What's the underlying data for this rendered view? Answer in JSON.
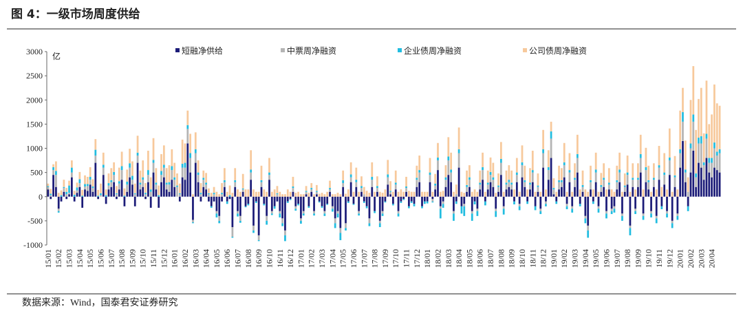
{
  "chart_data": {
    "type": "stacked_bar",
    "title": "图 4：一级市场周度供给",
    "y_unit": "亿",
    "ylim": [
      -1000,
      3000
    ],
    "yticks": [
      -1000,
      -500,
      0,
      500,
      1000,
      1500,
      2000,
      2500,
      3000
    ],
    "grid": false,
    "categories": [
      "15/01",
      null,
      null,
      null,
      "15/02",
      null,
      null,
      null,
      "15/03",
      null,
      null,
      null,
      "15/04",
      null,
      null,
      null,
      "15/05",
      null,
      null,
      null,
      "15/06",
      null,
      null,
      null,
      "15/07",
      null,
      null,
      null,
      "15/08",
      null,
      null,
      null,
      "15/09",
      null,
      null,
      null,
      "15/10",
      null,
      null,
      null,
      "15/11",
      null,
      null,
      null,
      "15/12",
      null,
      null,
      null,
      "16/01",
      null,
      null,
      null,
      "16/02",
      null,
      null,
      null,
      "16/03",
      null,
      null,
      null,
      "16/04",
      null,
      null,
      null,
      "16/05",
      null,
      null,
      null,
      "16/06",
      null,
      null,
      null,
      "16/07",
      null,
      null,
      null,
      "16/08",
      null,
      null,
      null,
      "16/09",
      null,
      null,
      null,
      "16/10",
      null,
      null,
      null,
      "16/11",
      null,
      null,
      null,
      "16/12",
      null,
      null,
      null,
      "17/01",
      null,
      null,
      null,
      "17/02",
      null,
      null,
      null,
      "17/03",
      null,
      null,
      null,
      "17/04",
      null,
      null,
      null,
      "17/05",
      null,
      null,
      null,
      "17/06",
      null,
      null,
      null,
      "17/07",
      null,
      null,
      null,
      "17/08",
      null,
      null,
      null,
      "17/09",
      null,
      null,
      null,
      "17/10",
      null,
      null,
      null,
      "17/11",
      null,
      null,
      null,
      "17/12",
      null,
      null,
      null,
      "18/01",
      null,
      null,
      null,
      "18/02",
      null,
      null,
      null,
      "18/03",
      null,
      null,
      null,
      "18/04",
      null,
      null,
      null,
      "18/05",
      null,
      null,
      null,
      "18/06",
      null,
      null,
      null,
      "18/07",
      null,
      null,
      null,
      "18/08",
      null,
      null,
      null,
      "18/09",
      null,
      null,
      null,
      "18/10",
      null,
      null,
      null,
      "18/11",
      null,
      null,
      null,
      "18/12",
      null,
      null,
      null,
      "19/01",
      null,
      null,
      null,
      "19/02",
      null,
      null,
      null,
      "19/03",
      null,
      null,
      null,
      "19/04",
      null,
      null,
      null,
      "19/05",
      null,
      null,
      null,
      "19/06",
      null,
      null,
      null,
      "19/07",
      null,
      null,
      null,
      "19/08",
      null,
      null,
      null,
      "19/09",
      null,
      null,
      null,
      "19/10",
      null,
      null,
      null,
      "19/11",
      null,
      null,
      null,
      "19/12",
      null,
      null,
      null,
      "20/01",
      null,
      null,
      null,
      "20/02",
      null,
      null,
      null,
      "20/03",
      null,
      null,
      null,
      "20/04",
      null,
      null,
      null
    ],
    "series": [
      {
        "name": "短融净供给",
        "color": "#1c1c78",
        "values": [
          150,
          -50,
          450,
          200,
          -250,
          -100,
          100,
          -50,
          50,
          400,
          -100,
          80,
          200,
          -230,
          150,
          120,
          250,
          100,
          700,
          -50,
          0,
          450,
          -150,
          150,
          200,
          300,
          -50,
          150,
          350,
          -200,
          100,
          400,
          250,
          -200,
          700,
          150,
          200,
          -50,
          300,
          -230,
          500,
          150,
          -230,
          300,
          400,
          150,
          100,
          350,
          200,
          0,
          -100,
          400,
          350,
          1100,
          500,
          -480,
          700,
          300,
          -100,
          200,
          150,
          -100,
          -200,
          -100,
          -300,
          -400,
          -100,
          200,
          -100,
          -50,
          -630,
          200,
          -300,
          -400,
          100,
          -200,
          -150,
          350,
          -600,
          -100,
          -800,
          200,
          -150,
          -400,
          350,
          -300,
          -200,
          -100,
          -300,
          -450,
          -700,
          -100,
          -50,
          100,
          -200,
          -150,
          -450,
          -300,
          50,
          -200,
          100,
          -300,
          50,
          -100,
          -200,
          -300,
          -150,
          100,
          -200,
          -450,
          -300,
          -650,
          200,
          -550,
          -100,
          300,
          -150,
          200,
          -300,
          100,
          -100,
          -200,
          -450,
          200,
          -300,
          100,
          -500,
          -300,
          -100,
          250,
          50,
          -150,
          150,
          -300,
          -100,
          -50,
          100,
          -200,
          -100,
          -150,
          200,
          300,
          -200,
          -100,
          -100,
          300,
          -50,
          150,
          550,
          -200,
          -100,
          200,
          450,
          300,
          -300,
          -100,
          600,
          -200,
          -150,
          100,
          200,
          -300,
          -100,
          -250,
          150,
          350,
          -100,
          150,
          300,
          200,
          -250,
          100,
          450,
          -200,
          150,
          200,
          150,
          -100,
          300,
          -150,
          400,
          200,
          -100,
          150,
          300,
          -200,
          100,
          -250,
          600,
          -100,
          350,
          800,
          50,
          -100,
          150,
          200,
          400,
          -150,
          300,
          -200,
          200,
          500,
          -150,
          100,
          -400,
          -600,
          150,
          -100,
          300,
          -200,
          100,
          200,
          -300,
          150,
          -250,
          -200,
          150,
          300,
          -350,
          100,
          250,
          -600,
          200,
          -250,
          200,
          500,
          -350,
          300,
          150,
          -300,
          200,
          -400,
          350,
          -200,
          250,
          -300,
          450,
          -500,
          200,
          -350,
          600,
          1150,
          300,
          -200,
          500,
          950,
          200,
          700,
          600,
          350,
          800,
          500,
          400,
          600,
          550,
          500
        ]
      },
      {
        "name": "中票周净融资",
        "color": "#b4b4b4",
        "values": [
          50,
          30,
          100,
          250,
          -50,
          0,
          80,
          50,
          30,
          100,
          0,
          50,
          80,
          0,
          60,
          100,
          100,
          80,
          150,
          0,
          30,
          150,
          0,
          80,
          100,
          150,
          50,
          120,
          200,
          0,
          150,
          200,
          100,
          50,
          150,
          100,
          150,
          50,
          150,
          100,
          200,
          100,
          0,
          150,
          200,
          100,
          150,
          200,
          150,
          200,
          50,
          200,
          250,
          300,
          300,
          -50,
          200,
          150,
          50,
          150,
          100,
          50,
          0,
          50,
          -50,
          -100,
          50,
          100,
          0,
          0,
          -200,
          100,
          -50,
          -100,
          50,
          0,
          0,
          150,
          -100,
          0,
          -100,
          100,
          0,
          -100,
          100,
          -50,
          0,
          50,
          -50,
          -100,
          -100,
          0,
          0,
          80,
          -50,
          0,
          -50,
          -50,
          50,
          0,
          50,
          -50,
          50,
          0,
          0,
          -50,
          0,
          50,
          -50,
          -100,
          -50,
          -100,
          80,
          -100,
          0,
          100,
          0,
          100,
          -50,
          80,
          50,
          0,
          -100,
          150,
          0,
          80,
          -50,
          -50,
          0,
          150,
          50,
          0,
          100,
          -50,
          0,
          0,
          80,
          0,
          0,
          0,
          150,
          200,
          0,
          0,
          0,
          150,
          -50,
          80,
          200,
          -50,
          -50,
          150,
          300,
          200,
          -50,
          50,
          300,
          0,
          -50,
          100,
          150,
          -50,
          0,
          -50,
          100,
          200,
          0,
          100,
          150,
          150,
          -50,
          100,
          250,
          -50,
          100,
          100,
          100,
          0,
          150,
          -50,
          250,
          100,
          0,
          100,
          200,
          0,
          100,
          -50,
          300,
          -50,
          200,
          400,
          100,
          0,
          150,
          100,
          250,
          -50,
          200,
          -50,
          150,
          300,
          0,
          100,
          -50,
          -100,
          150,
          0,
          200,
          -50,
          100,
          150,
          -50,
          100,
          -50,
          -50,
          150,
          200,
          -50,
          100,
          200,
          -50,
          150,
          -50,
          150,
          300,
          -50,
          250,
          150,
          -50,
          150,
          -50,
          250,
          0,
          200,
          -50,
          300,
          -50,
          200,
          -50,
          300,
          400,
          200,
          100,
          500,
          600,
          200,
          400,
          500,
          300,
          400,
          200,
          300,
          400,
          300,
          400
        ]
      },
      {
        "name": "企业债周净融资",
        "color": "#22bde0",
        "values": [
          20,
          30,
          60,
          80,
          -30,
          30,
          20,
          50,
          150,
          100,
          40,
          60,
          80,
          20,
          50,
          40,
          60,
          30,
          120,
          20,
          40,
          60,
          30,
          50,
          40,
          60,
          20,
          50,
          80,
          20,
          60,
          90,
          80,
          20,
          60,
          40,
          50,
          30,
          100,
          50,
          60,
          40,
          30,
          80,
          60,
          40,
          50,
          80,
          50,
          30,
          20,
          80,
          100,
          80,
          100,
          -20,
          80,
          50,
          30,
          40,
          40,
          20,
          -30,
          30,
          -80,
          -50,
          30,
          40,
          -50,
          30,
          -20,
          40,
          -60,
          -40,
          20,
          -20,
          -30,
          60,
          -50,
          -30,
          -20,
          40,
          -30,
          -80,
          50,
          -30,
          -50,
          20,
          -80,
          -60,
          -120,
          -30,
          -20,
          30,
          -40,
          -30,
          -60,
          -40,
          20,
          -30,
          30,
          -40,
          20,
          -20,
          -30,
          -50,
          -20,
          30,
          -60,
          -100,
          -80,
          -150,
          60,
          -50,
          -30,
          60,
          -20,
          50,
          -40,
          40,
          -30,
          -40,
          -60,
          60,
          -40,
          40,
          -80,
          -50,
          -20,
          60,
          20,
          -30,
          40,
          -60,
          -30,
          -20,
          30,
          -40,
          -30,
          -50,
          40,
          50,
          -40,
          -50,
          -40,
          50,
          -20,
          40,
          60,
          -200,
          -80,
          50,
          80,
          60,
          -150,
          -50,
          80,
          -150,
          -200,
          40,
          50,
          -150,
          -60,
          -100,
          40,
          60,
          -80,
          40,
          60,
          50,
          -120,
          30,
          80,
          -120,
          40,
          50,
          40,
          -60,
          50,
          -80,
          60,
          40,
          -50,
          40,
          50,
          -80,
          30,
          -60,
          80,
          -50,
          60,
          150,
          30,
          -50,
          40,
          40,
          60,
          -60,
          50,
          -80,
          40,
          80,
          -50,
          40,
          -100,
          -150,
          40,
          -50,
          60,
          -80,
          40,
          40,
          -100,
          40,
          -60,
          -80,
          40,
          60,
          -100,
          30,
          50,
          -150,
          40,
          -60,
          40,
          80,
          -80,
          60,
          40,
          -80,
          40,
          -100,
          50,
          -60,
          50,
          -80,
          60,
          -100,
          40,
          -80,
          80,
          200,
          60,
          -100,
          100,
          150,
          80,
          120,
          150,
          60,
          100,
          100,
          100,
          120,
          80,
          80
        ]
      },
      {
        "name": "公司债周净融资",
        "color": "#f7c99c",
        "values": [
          50,
          100,
          60,
          200,
          80,
          100,
          150,
          80,
          100,
          150,
          80,
          100,
          150,
          120,
          180,
          150,
          200,
          150,
          220,
          120,
          200,
          250,
          120,
          200,
          250,
          200,
          150,
          280,
          300,
          150,
          250,
          300,
          300,
          200,
          350,
          250,
          350,
          200,
          400,
          250,
          450,
          300,
          200,
          350,
          400,
          300,
          350,
          350,
          300,
          250,
          200,
          500,
          400,
          300,
          400,
          50,
          350,
          250,
          200,
          150,
          200,
          100,
          80,
          120,
          100,
          50,
          200,
          250,
          100,
          200,
          80,
          250,
          150,
          100,
          300,
          150,
          150,
          400,
          150,
          100,
          100,
          300,
          150,
          100,
          300,
          100,
          150,
          150,
          100,
          50,
          50,
          150,
          100,
          200,
          80,
          100,
          50,
          50,
          100,
          80,
          100,
          50,
          120,
          60,
          80,
          50,
          100,
          150,
          50,
          50,
          80,
          50,
          200,
          60,
          150,
          250,
          100,
          250,
          100,
          200,
          150,
          120,
          80,
          300,
          100,
          200,
          100,
          80,
          150,
          300,
          200,
          100,
          250,
          100,
          150,
          100,
          200,
          120,
          100,
          100,
          250,
          300,
          100,
          100,
          100,
          300,
          100,
          200,
          300,
          100,
          120,
          250,
          400,
          350,
          100,
          200,
          450,
          100,
          80,
          300,
          250,
          100,
          150,
          100,
          250,
          300,
          100,
          250,
          300,
          300,
          80,
          250,
          350,
          100,
          250,
          300,
          250,
          150,
          300,
          100,
          350,
          300,
          150,
          300,
          400,
          100,
          250,
          100,
          400,
          150,
          350,
          200,
          200,
          100,
          300,
          250,
          400,
          100,
          350,
          100,
          300,
          400,
          150,
          300,
          150,
          100,
          300,
          150,
          350,
          100,
          250,
          300,
          150,
          300,
          150,
          100,
          300,
          350,
          100,
          250,
          350,
          100,
          300,
          150,
          300,
          400,
          150,
          400,
          300,
          100,
          300,
          150,
          400,
          200,
          400,
          150,
          600,
          100,
          400,
          150,
          800,
          500,
          600,
          300,
          900,
          1000,
          900,
          800,
          1000,
          600,
          1100,
          700,
          900,
          1200,
          1000,
          900
        ]
      }
    ]
  },
  "source": "数据来源：Wind，国泰君安证券研究"
}
